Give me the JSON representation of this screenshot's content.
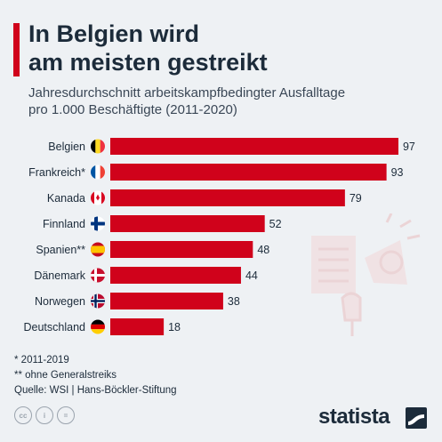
{
  "header": {
    "title_line1": "In Belgien wird",
    "title_line2": "am meisten gestreikt",
    "subtitle_line1": "Jahresdurchschnitt arbeitskampfbedingter Ausfalltage",
    "subtitle_line2": "pro 1.000 Beschäftigte (2011-2020)"
  },
  "colors": {
    "accent": "#d0021b",
    "bar": "#d0021b",
    "text": "#1c2b3a",
    "background": "#eef1f4"
  },
  "chart_data": {
    "type": "bar",
    "orientation": "horizontal",
    "categories": [
      "Belgien",
      "Frankreich*",
      "Kanada",
      "Finnland",
      "Spanien**",
      "Dänemark",
      "Norwegen",
      "Deutschland"
    ],
    "values": [
      97,
      93,
      79,
      52,
      48,
      44,
      38,
      18
    ],
    "flags": [
      "flag-belgium-icon",
      "flag-france-icon",
      "flag-canada-icon",
      "flag-finland-icon",
      "flag-spain-icon",
      "flag-denmark-icon",
      "flag-norway-icon",
      "flag-germany-icon"
    ],
    "xlim": [
      0,
      100
    ],
    "grid": false,
    "legend": "none"
  },
  "footnotes": {
    "note1": "*  2011-2019",
    "note2": "** ohne Generalstreiks",
    "source": "Quelle: WSI  |  Hans-Böckler-Stiftung"
  },
  "license": {
    "icons": [
      "creative-commons-icon",
      "attribution-icon",
      "no-derivatives-icon"
    ],
    "labels": [
      "cc",
      "i",
      "="
    ]
  },
  "brand": {
    "name": "statista"
  }
}
